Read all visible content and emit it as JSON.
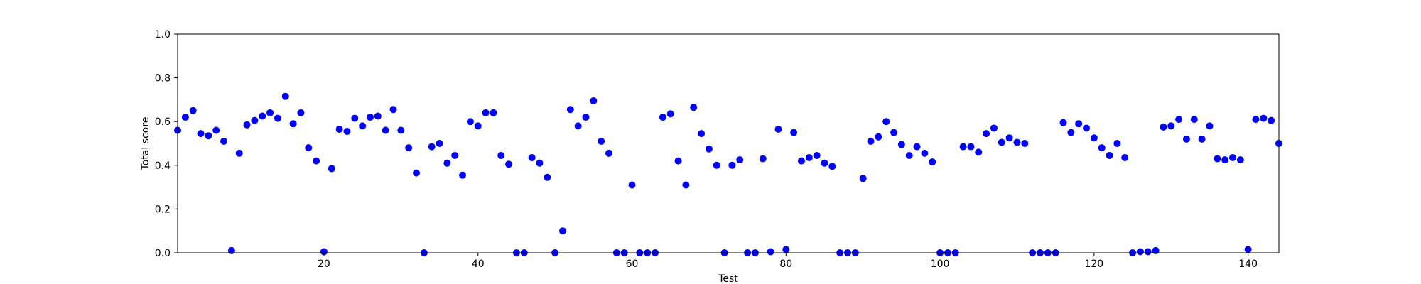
{
  "chart_data": {
    "type": "scatter",
    "xlabel": "Test",
    "ylabel": "Total score",
    "xlim": [
      1,
      144
    ],
    "ylim": [
      0.0,
      1.0
    ],
    "x_ticks": [
      20,
      40,
      60,
      80,
      100,
      120,
      140
    ],
    "x_tick_labels": [
      "20",
      "40",
      "60",
      "80",
      "100",
      "120",
      "140"
    ],
    "y_ticks": [
      0.0,
      0.2,
      0.4,
      0.6,
      0.8,
      1.0
    ],
    "y_tick_labels": [
      "0.0",
      "0.2",
      "0.4",
      "0.6",
      "0.8",
      "1.0"
    ],
    "grid": false,
    "marker_color": "#0000ff",
    "x": [
      1,
      2,
      3,
      4,
      5,
      6,
      7,
      8,
      9,
      10,
      11,
      12,
      13,
      14,
      15,
      16,
      17,
      18,
      19,
      20,
      21,
      22,
      23,
      24,
      25,
      26,
      27,
      28,
      29,
      30,
      31,
      32,
      33,
      34,
      35,
      36,
      37,
      38,
      39,
      40,
      41,
      42,
      43,
      44,
      45,
      46,
      47,
      48,
      49,
      50,
      51,
      52,
      53,
      54,
      55,
      56,
      57,
      58,
      59,
      60,
      61,
      62,
      63,
      64,
      65,
      66,
      67,
      68,
      69,
      70,
      71,
      72,
      73,
      74,
      75,
      76,
      77,
      78,
      79,
      80,
      81,
      82,
      83,
      84,
      85,
      86,
      87,
      88,
      89,
      90,
      91,
      92,
      93,
      94,
      95,
      96,
      97,
      98,
      99,
      100,
      101,
      102,
      103,
      104,
      105,
      106,
      107,
      108,
      109,
      110,
      111,
      112,
      113,
      114,
      115,
      116,
      117,
      118,
      119,
      120,
      121,
      122,
      123,
      124,
      125,
      126,
      127,
      128,
      129,
      130,
      131,
      132,
      133,
      134,
      135,
      136,
      137,
      138,
      139,
      140,
      141,
      142,
      143,
      144
    ],
    "y": [
      0.56,
      0.62,
      0.65,
      0.545,
      0.535,
      0.56,
      0.51,
      0.01,
      0.455,
      0.585,
      0.605,
      0.625,
      0.64,
      0.615,
      0.715,
      0.59,
      0.64,
      0.48,
      0.42,
      0.005,
      0.385,
      0.565,
      0.555,
      0.615,
      0.58,
      0.62,
      0.625,
      0.56,
      0.655,
      0.56,
      0.48,
      0.365,
      0.0,
      0.485,
      0.5,
      0.41,
      0.445,
      0.355,
      0.6,
      0.58,
      0.64,
      0.64,
      0.445,
      0.405,
      0.0,
      0.0,
      0.435,
      0.41,
      0.345,
      0.0,
      0.1,
      0.655,
      0.58,
      0.62,
      0.695,
      0.51,
      0.455,
      0.0,
      0.0,
      0.31,
      0.0,
      0.0,
      0.0,
      0.62,
      0.635,
      0.42,
      0.31,
      0.665,
      0.545,
      0.475,
      0.4,
      0.0,
      0.4,
      0.425,
      0.0,
      0.0,
      0.43,
      0.005,
      0.565,
      0.015,
      0.55,
      0.42,
      0.435,
      0.445,
      0.41,
      0.395,
      0.0,
      0.0,
      0.0,
      0.34,
      0.51,
      0.53,
      0.6,
      0.55,
      0.495,
      0.445,
      0.485,
      0.455,
      0.415,
      0.0,
      0.0,
      0.0,
      0.485,
      0.485,
      0.46,
      0.545,
      0.57,
      0.505,
      0.525,
      0.505,
      0.5,
      0.0,
      0.0,
      0.0,
      0.0,
      0.595,
      0.55,
      0.59,
      0.57,
      0.525,
      0.48,
      0.445,
      0.5,
      0.435,
      0.0,
      0.005,
      0.005,
      0.01,
      0.575,
      0.58,
      0.61,
      0.52,
      0.61,
      0.52,
      0.58,
      0.43,
      0.425,
      0.435,
      0.425,
      0.015,
      0.61,
      0.615,
      0.605,
      0.5
    ]
  }
}
